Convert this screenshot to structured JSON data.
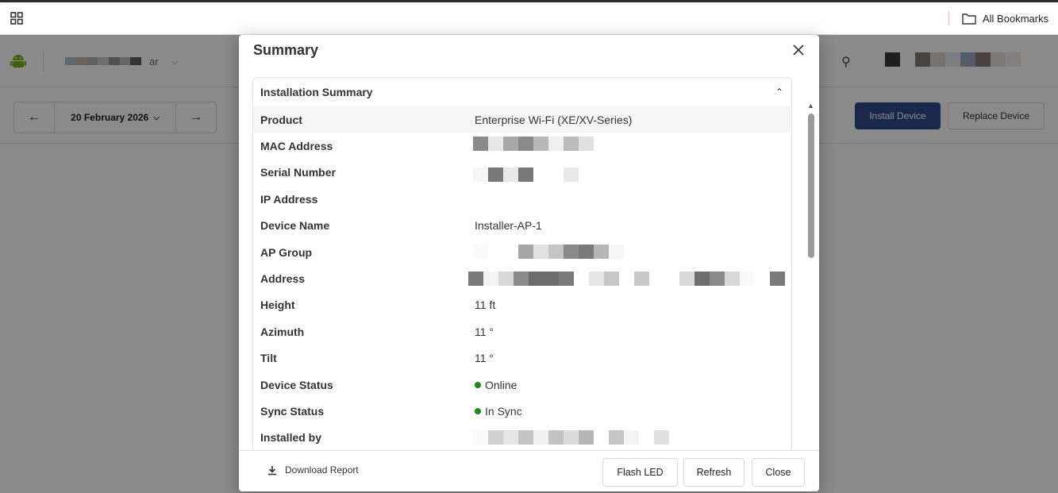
{
  "browser": {
    "bookmarks_label": "All Bookmarks"
  },
  "app": {
    "account_name": "ar",
    "date_label": "20 February 2026",
    "install_button": "Install Device",
    "replace_button": "Replace Device"
  },
  "modal": {
    "title": "Summary",
    "section_title": "Installation Summary",
    "rows": [
      {
        "key": "Product",
        "value": "Enterprise Wi-Fi (XE/XV-Series)"
      },
      {
        "key": "MAC Address",
        "value": ""
      },
      {
        "key": "Serial Number",
        "value": ""
      },
      {
        "key": "IP Address",
        "value": ""
      },
      {
        "key": "Device Name",
        "value": "Installer-AP-1"
      },
      {
        "key": "AP Group",
        "value": ""
      },
      {
        "key": "Address",
        "value": ""
      },
      {
        "key": "Height",
        "value": "11 ft"
      },
      {
        "key": "Azimuth",
        "value": "11 °"
      },
      {
        "key": "Tilt",
        "value": "11 °"
      },
      {
        "key": "Device Status",
        "value": "Online"
      },
      {
        "key": "Sync Status",
        "value": "In Sync"
      },
      {
        "key": "Installed by",
        "value": ""
      }
    ],
    "footer": {
      "download_label": "Download Report",
      "flash_label": "Flash LED",
      "refresh_label": "Refresh",
      "close_label": "Close"
    }
  },
  "colors": {
    "primary": "#2f4a8a",
    "status_online": "#1a8a1a",
    "overlay": "rgba(0,0,0,0.46)"
  },
  "icons": [
    "apps-grid-icon",
    "folder-icon",
    "android-icon",
    "chevron-down-icon",
    "search-icon",
    "arrow-left-icon",
    "arrow-right-icon",
    "close-icon",
    "chevron-up-icon",
    "download-icon"
  ]
}
